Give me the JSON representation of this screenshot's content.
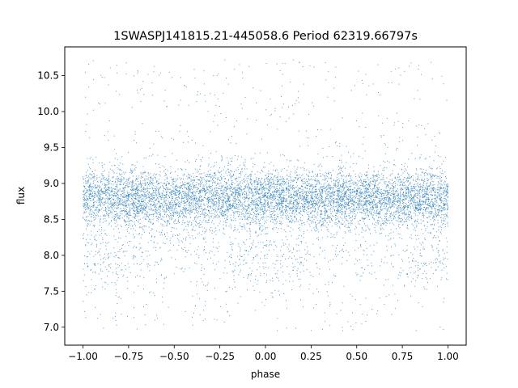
{
  "chart_data": {
    "type": "scatter",
    "title": "1SWASPJ141815.21-445058.6 Period 62319.66797s",
    "xlabel": "phase",
    "ylabel": "flux",
    "xlim": [
      -1.1,
      1.1
    ],
    "ylim": [
      6.75,
      10.9
    ],
    "x_ticks": [
      -1.0,
      -0.75,
      -0.5,
      -0.25,
      0.0,
      0.25,
      0.5,
      0.75,
      1.0
    ],
    "x_tick_labels": [
      "−1.00",
      "−0.75",
      "−0.50",
      "−0.25",
      "0.00",
      "0.25",
      "0.50",
      "0.75",
      "1.00"
    ],
    "y_ticks": [
      7.0,
      7.5,
      8.0,
      8.5,
      9.0,
      9.5,
      10.0,
      10.5
    ],
    "y_tick_labels": [
      "7.0",
      "7.5",
      "8.0",
      "8.5",
      "9.0",
      "9.5",
      "10.0",
      "10.5"
    ],
    "grid": false,
    "point_color": "#1f77b4",
    "series": [
      {
        "x_range": [
          -1.0,
          1.0
        ],
        "y_range": [
          6.95,
          10.72
        ],
        "main_band_center": 8.8,
        "main_band_range": [
          8.4,
          9.2
        ],
        "dense_dip_phases": [
          -0.05,
          0.0,
          0.05
        ],
        "dip_flux_range": [
          7.7,
          8.2
        ]
      }
    ]
  }
}
